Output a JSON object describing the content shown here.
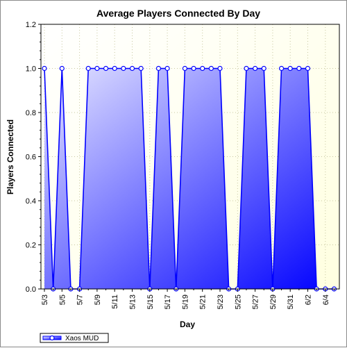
{
  "chart_data": {
    "type": "area",
    "title": "Average Players Connected By Day",
    "xlabel": "Day",
    "ylabel": "Players Connected",
    "ylim": [
      0,
      1.2
    ],
    "yticks": [
      "0.0",
      "0.2",
      "0.4",
      "0.6",
      "0.8",
      "1.0",
      "1.2"
    ],
    "categories": [
      "5/3",
      "5/4",
      "5/5",
      "5/6",
      "5/7",
      "5/8",
      "5/9",
      "5/10",
      "5/11",
      "5/12",
      "5/13",
      "5/14",
      "5/15",
      "5/16",
      "5/17",
      "5/18",
      "5/19",
      "5/20",
      "5/21",
      "5/22",
      "5/23",
      "5/24",
      "5/25",
      "5/26",
      "5/27",
      "5/28",
      "5/29",
      "5/30",
      "5/31",
      "6/1",
      "6/2",
      "6/3",
      "6/4",
      "6/5"
    ],
    "xtick_labels": [
      "5/3",
      "5/5",
      "5/7",
      "5/9",
      "5/11",
      "5/13",
      "5/15",
      "5/17",
      "5/19",
      "5/21",
      "5/23",
      "5/25",
      "5/27",
      "5/29",
      "5/31",
      "6/2",
      "6/4"
    ],
    "series": [
      {
        "name": "Xaos MUD",
        "values": [
          1,
          0,
          1,
          0,
          0,
          1,
          1,
          1,
          1,
          1,
          1,
          1,
          0,
          1,
          1,
          0,
          1,
          1,
          1,
          1,
          1,
          0,
          0,
          1,
          1,
          1,
          0,
          1,
          1,
          1,
          1,
          0,
          0,
          0
        ]
      }
    ],
    "grid": true,
    "legend": "bottom-left",
    "colors": {
      "plot_background": "#ffffe0",
      "line": "#0000ff",
      "fill_light": "#e6e6ff",
      "fill_dark": "#0000ff",
      "marker_fill": "#ffffff"
    }
  }
}
